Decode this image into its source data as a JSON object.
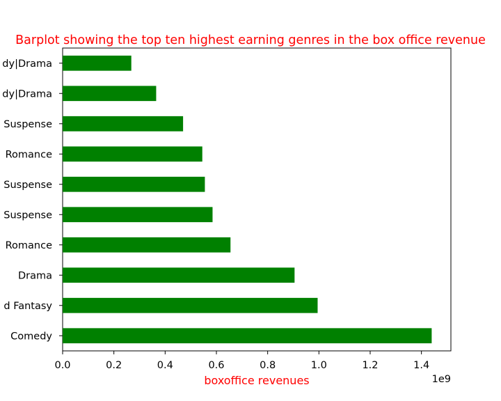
{
  "chart_data": {
    "type": "bar",
    "orientation": "horizontal",
    "title": "Barplot showing the top ten highest earning genres in the box office revenue",
    "xlabel": "boxoffice revenues",
    "ylabel": "",
    "x_offset_label": "1e9",
    "categories": [
      "Comedy",
      "d Fantasy",
      "Drama",
      "Romance",
      "Suspense",
      "Suspense",
      "Romance",
      "Suspense",
      "dy|Drama",
      "dy|Drama"
    ],
    "values": [
      1.44,
      0.995,
      0.905,
      0.655,
      0.585,
      0.555,
      0.545,
      0.47,
      0.365,
      0.268
    ],
    "xlim": [
      0,
      1.515
    ],
    "xticks": [
      0.0,
      0.2,
      0.4,
      0.6,
      0.8,
      1.0,
      1.2,
      1.4
    ],
    "xtick_labels": [
      "0.0",
      "0.2",
      "0.4",
      "0.6",
      "0.8",
      "1.0",
      "1.2",
      "1.4"
    ],
    "grid": false,
    "legend": "none",
    "colors": {
      "bar": "#008000",
      "title": "#ff0000",
      "xlabel": "#ff0000",
      "axis": "#000000"
    }
  }
}
